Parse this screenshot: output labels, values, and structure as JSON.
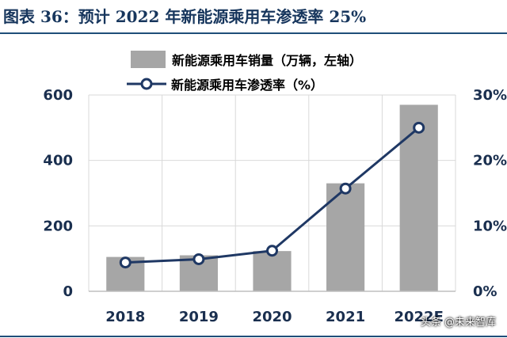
{
  "title": "图表 36：预计 2022 年新能源乘用车渗透率 25%",
  "watermark": "头条 @未来智库",
  "colors": {
    "bar": "#a6a6a6",
    "line": "#1f3864",
    "axis_text": "#1a2f4f",
    "rule": "#1f4e79"
  },
  "chart_data": {
    "type": "bar",
    "categories": [
      "2018",
      "2019",
      "2020",
      "2021",
      "2022E"
    ],
    "series": [
      {
        "name": "新能源乘用车销量（万辆，左轴）",
        "type": "bar",
        "axis": "left",
        "values": [
          105,
          110,
          123,
          330,
          570
        ]
      },
      {
        "name": "新能源乘用车渗透率（%）",
        "type": "line",
        "axis": "right",
        "values": [
          4.4,
          4.9,
          6.2,
          15.7,
          25.0
        ]
      }
    ],
    "y_left": {
      "min": 0,
      "max": 600,
      "ticks": [
        "0",
        "200",
        "400",
        "600"
      ]
    },
    "y_right": {
      "min": 0,
      "max": 30,
      "ticks": [
        "0%",
        "10%",
        "20%",
        "30%"
      ]
    },
    "grid": true,
    "legend": "top"
  }
}
